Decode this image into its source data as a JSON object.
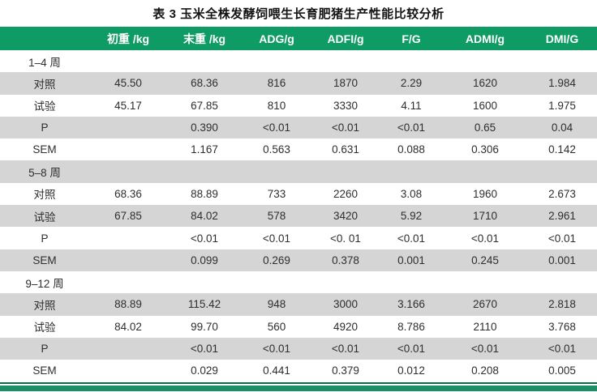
{
  "title": "表 3 玉米全株发酵饲喂生长育肥猪生产性能比较分析",
  "colors": {
    "header_bg": "#0f9b64",
    "row_alt_bg": "#d5d5d5",
    "header_text": "#ffffff",
    "body_text": "#2e2e2e",
    "bottom_rule": "#0a6a46",
    "bottom_band": "#1e8e66"
  },
  "table": {
    "columns": [
      "",
      "初重 /kg",
      "末重 /kg",
      "ADG/g",
      "ADFI/g",
      "F/G",
      "ADMI/g",
      "DMI/G"
    ],
    "rows": [
      {
        "label": "1–4 周",
        "type": "section",
        "cells": [
          "",
          "",
          "",
          "",
          "",
          "",
          ""
        ]
      },
      {
        "label": "对照",
        "type": "data",
        "cells": [
          "45.50",
          "68.36",
          "816",
          "1870",
          "2.29",
          "1620",
          "1.984"
        ]
      },
      {
        "label": "试验",
        "type": "data",
        "cells": [
          "45.17",
          "67.85",
          "810",
          "3330",
          "4.11",
          "1600",
          "1.975"
        ]
      },
      {
        "label": "P",
        "type": "data",
        "cells": [
          "",
          "0.390",
          "<0.01",
          "<0.01",
          "<0.01",
          "0.65",
          "0.04"
        ]
      },
      {
        "label": "SEM",
        "type": "data",
        "cells": [
          "",
          "1.167",
          "0.563",
          "0.631",
          "0.088",
          "0.306",
          "0.142"
        ]
      },
      {
        "label": "5–8 周",
        "type": "section",
        "cells": [
          "",
          "",
          "",
          "",
          "",
          "",
          ""
        ]
      },
      {
        "label": "对照",
        "type": "data",
        "cells": [
          "68.36",
          "88.89",
          "733",
          "2260",
          "3.08",
          "1960",
          "2.673"
        ]
      },
      {
        "label": "试验",
        "type": "data",
        "cells": [
          "67.85",
          "84.02",
          "578",
          "3420",
          "5.92",
          "1710",
          "2.961"
        ]
      },
      {
        "label": "P",
        "type": "data",
        "cells": [
          "",
          "<0.01",
          "<0.01",
          "<0. 01",
          "<0.01",
          "<0.01",
          "<0.01"
        ]
      },
      {
        "label": "SEM",
        "type": "data",
        "cells": [
          "",
          "0.099",
          "0.269",
          "0.378",
          "0.001",
          "0.245",
          "0.001"
        ]
      },
      {
        "label": "9–12 周",
        "type": "section",
        "cells": [
          "",
          "",
          "",
          "",
          "",
          "",
          ""
        ]
      },
      {
        "label": "对照",
        "type": "data",
        "cells": [
          "88.89",
          "115.42",
          "948",
          "3000",
          "3.166",
          "2670",
          "2.818"
        ]
      },
      {
        "label": "试验",
        "type": "data",
        "cells": [
          "84.02",
          "99.70",
          "560",
          "4920",
          "8.786",
          "2110",
          "3.768"
        ]
      },
      {
        "label": "P",
        "type": "data",
        "cells": [
          "",
          "<0.01",
          "<0.01",
          "<0.01",
          "<0.01",
          "<0.01",
          "<0.01"
        ]
      },
      {
        "label": "SEM",
        "type": "data",
        "cells": [
          "",
          "0.029",
          "0.441",
          "0.379",
          "0.012",
          "0.208",
          "0.005"
        ]
      }
    ]
  }
}
